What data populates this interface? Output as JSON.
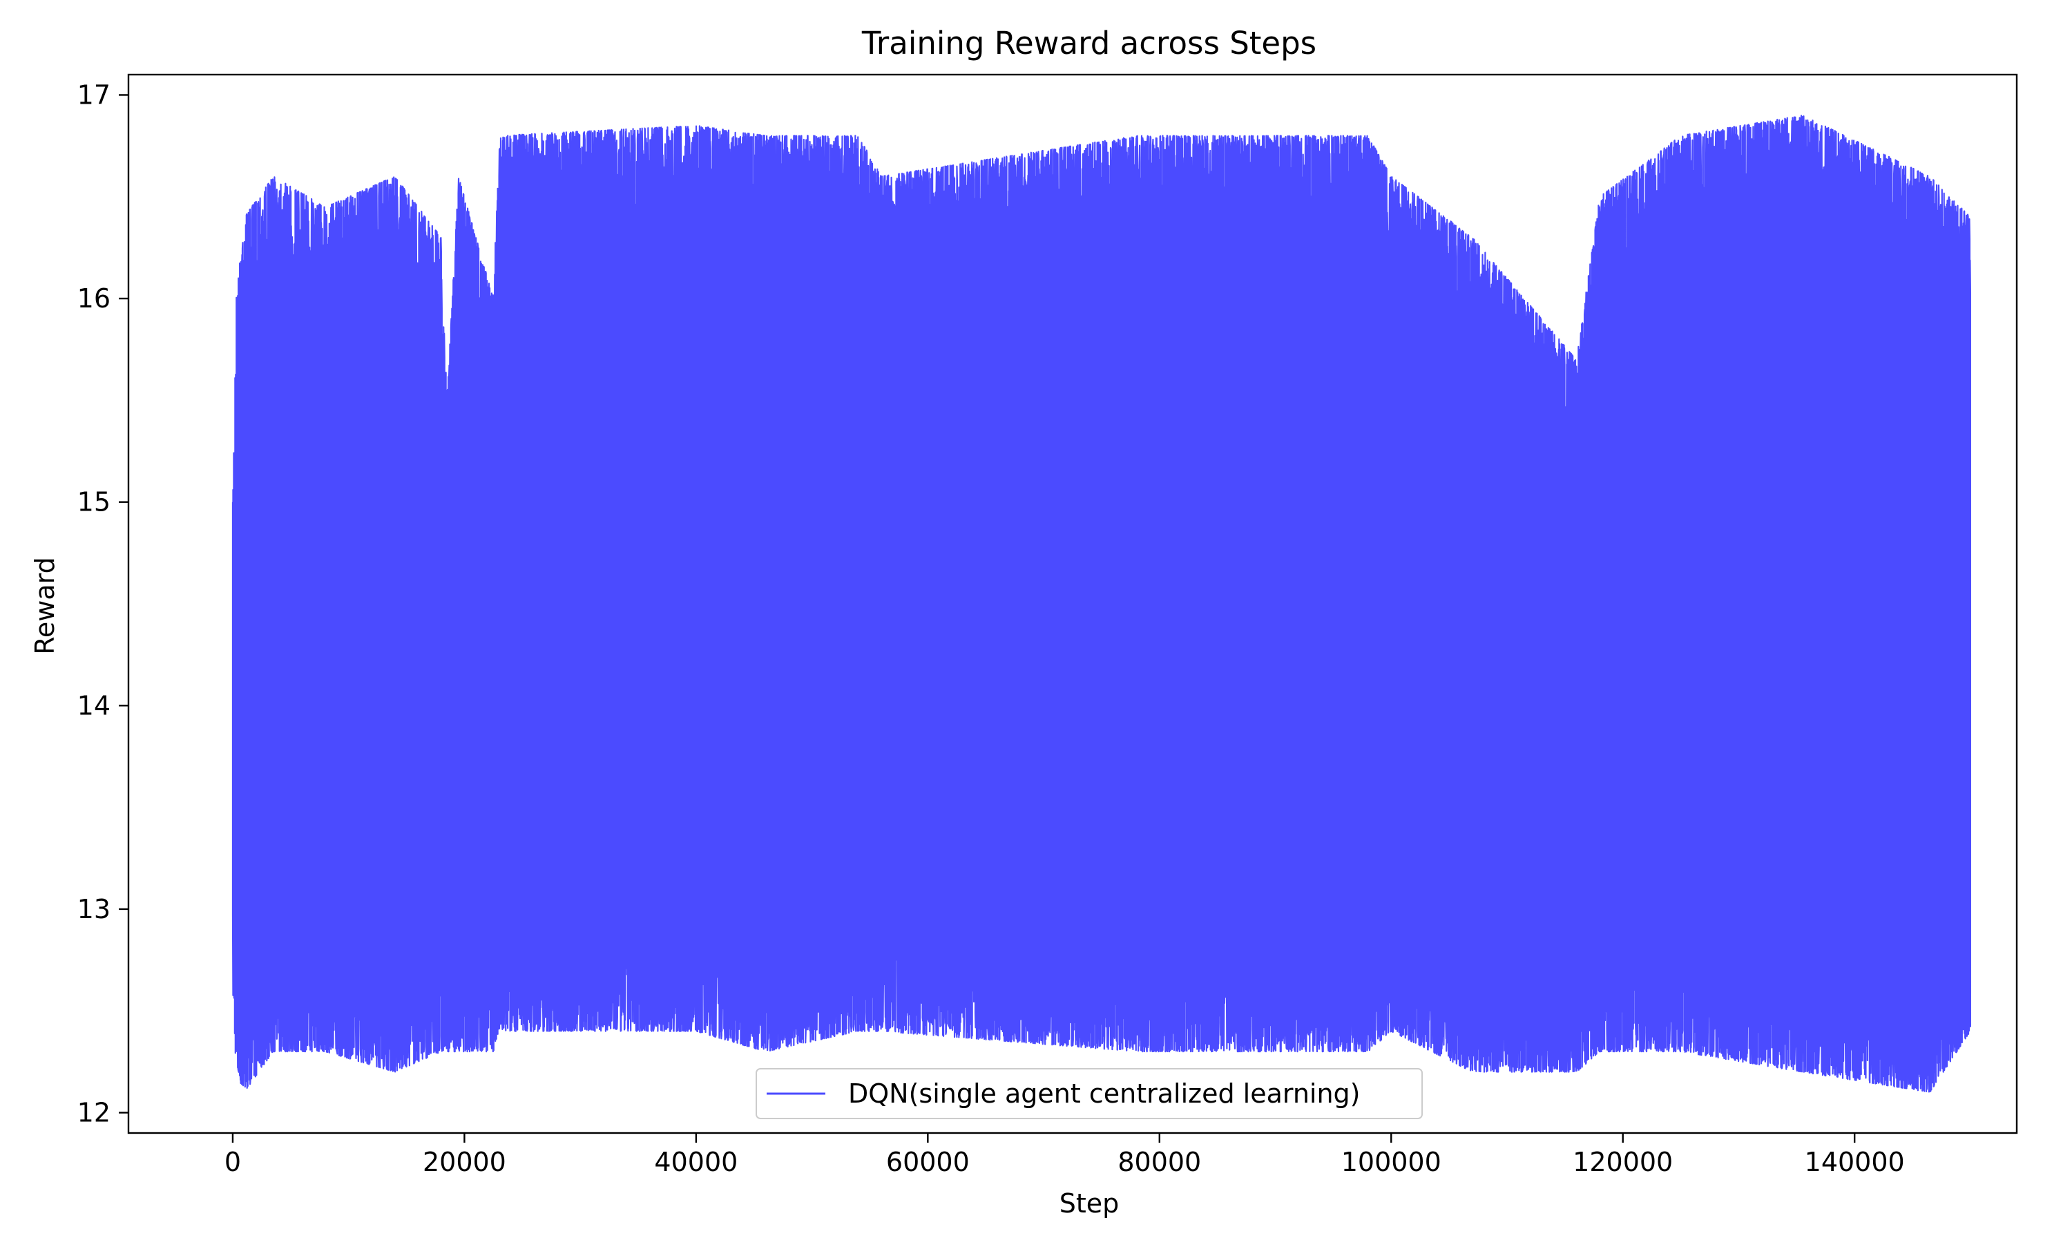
{
  "chart_data": {
    "type": "line",
    "title": "Training Reward across Steps",
    "xlabel": "Step",
    "ylabel": "Reward",
    "xlim": [
      -9000,
      154000
    ],
    "ylim": [
      11.9,
      17.1
    ],
    "xticks": [
      0,
      20000,
      40000,
      60000,
      80000,
      100000,
      120000,
      140000
    ],
    "yticks": [
      12,
      13,
      14,
      15,
      16,
      17
    ],
    "grid": false,
    "legend_position": "lower center",
    "series": [
      {
        "name": "DQN(single agent centralized learning)",
        "color": "#4b4bff",
        "x_range": [
          0,
          150000
        ],
        "envelope": [
          {
            "x": 0,
            "lower": 12.6,
            "upper": 15.0
          },
          {
            "x": 300,
            "lower": 12.2,
            "upper": 16.0
          },
          {
            "x": 1000,
            "lower": 12.1,
            "upper": 16.4
          },
          {
            "x": 3500,
            "lower": 12.3,
            "upper": 16.6
          },
          {
            "x": 8000,
            "lower": 12.3,
            "upper": 16.45
          },
          {
            "x": 14000,
            "lower": 12.2,
            "upper": 16.6
          },
          {
            "x": 18000,
            "lower": 12.3,
            "upper": 16.3
          },
          {
            "x": 18500,
            "lower": 12.3,
            "upper": 15.5
          },
          {
            "x": 19500,
            "lower": 12.3,
            "upper": 16.6
          },
          {
            "x": 22500,
            "lower": 12.3,
            "upper": 16.0
          },
          {
            "x": 23000,
            "lower": 12.4,
            "upper": 16.8
          },
          {
            "x": 40000,
            "lower": 12.4,
            "upper": 16.85
          },
          {
            "x": 46000,
            "lower": 12.3,
            "upper": 16.8
          },
          {
            "x": 54000,
            "lower": 12.4,
            "upper": 16.8
          },
          {
            "x": 56000,
            "lower": 12.4,
            "upper": 16.6
          },
          {
            "x": 78000,
            "lower": 12.3,
            "upper": 16.8
          },
          {
            "x": 98000,
            "lower": 12.3,
            "upper": 16.8
          },
          {
            "x": 100000,
            "lower": 12.4,
            "upper": 16.6
          },
          {
            "x": 107000,
            "lower": 12.2,
            "upper": 16.3
          },
          {
            "x": 116000,
            "lower": 12.2,
            "upper": 15.7
          },
          {
            "x": 118000,
            "lower": 12.3,
            "upper": 16.5
          },
          {
            "x": 125000,
            "lower": 12.3,
            "upper": 16.8
          },
          {
            "x": 135500,
            "lower": 12.2,
            "upper": 16.9
          },
          {
            "x": 146500,
            "lower": 12.1,
            "upper": 16.6
          },
          {
            "x": 150000,
            "lower": 12.4,
            "upper": 16.4
          }
        ]
      }
    ]
  }
}
